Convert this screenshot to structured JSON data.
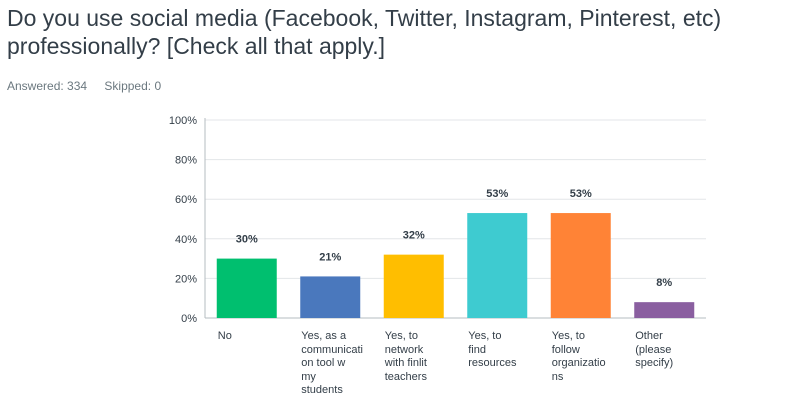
{
  "question": {
    "title": "Do you use social media (Facebook, Twitter, Instagram, Pinterest, etc) professionally? [Check all that apply.]",
    "answered_label": "Answered: 334",
    "skipped_label": "Skipped: 0"
  },
  "chart_data": {
    "type": "bar",
    "title": "",
    "xlabel": "",
    "ylabel": "",
    "ylim": [
      0,
      100
    ],
    "yticks": [
      "0%",
      "20%",
      "40%",
      "60%",
      "80%",
      "100%"
    ],
    "ytick_values": [
      0,
      20,
      40,
      60,
      80,
      100
    ],
    "grid": true,
    "categories": [
      "No",
      "Yes, as a\ncommunicati\non tool w\nmy\nstudents",
      "Yes, to\nnetwork\nwith finlit\nteachers",
      "Yes, to\nfind\nresources",
      "Yes, to\nfollow\norganizatio\nns",
      "Other\n(please\nspecify)"
    ],
    "values": [
      30,
      21,
      32,
      53,
      53,
      8
    ],
    "data_labels": [
      "30%",
      "21%",
      "32%",
      "53%",
      "53%",
      "8%"
    ],
    "colors": [
      "#00bf6f",
      "#4a78bd",
      "#ffbe00",
      "#3ecbd0",
      "#ff8336",
      "#8a5fa0"
    ]
  }
}
